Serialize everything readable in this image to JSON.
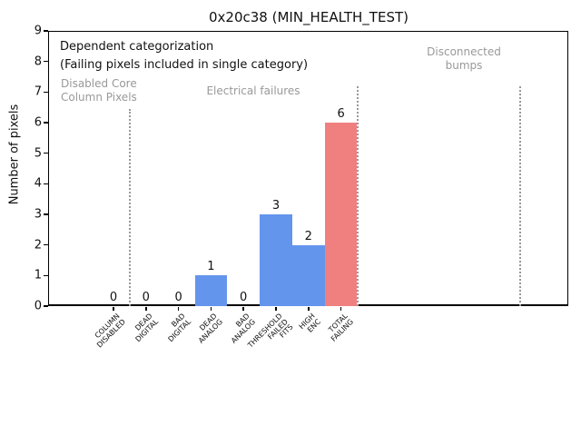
{
  "chart_data": {
    "type": "bar",
    "title": "0x20c38 (MIN_HEALTH_TEST)",
    "ylabel": "Number of pixels",
    "ylim": [
      0,
      9
    ],
    "yticks": [
      0,
      1,
      2,
      3,
      4,
      5,
      6,
      7,
      8,
      9
    ],
    "grid": false,
    "categories": [
      "COLUMN\nDISABLED",
      "DEAD\nDIGITAL",
      "BAD\nDIGITAL",
      "DEAD\nANALOG",
      "BAD\nANALOG",
      "THRESHOLD\nFAILED\nFITS",
      "HIGH\nENC",
      "TOTAL\nFAILING"
    ],
    "values": [
      0,
      0,
      0,
      1,
      0,
      3,
      2,
      6
    ],
    "bar_value_labels": [
      "0",
      "0",
      "0",
      "1",
      "0",
      "3",
      "2",
      "6"
    ],
    "bar_colors": [
      "#6495ED",
      "#6495ED",
      "#6495ED",
      "#6495ED",
      "#6495ED",
      "#6495ED",
      "#6495ED",
      "#F08080"
    ],
    "note_line1": "Dependent categorization",
    "note_line2": "(Failing pixels included in single category)",
    "regions": [
      {
        "label": "Disabled Core\nColumn Pixels",
        "from_x_unit": -2,
        "to_x_unit": 0.5
      },
      {
        "label": "Electrical failures",
        "from_x_unit": 0.5,
        "to_x_unit": 7.5
      },
      {
        "label": "Disconnected\nbumps",
        "from_x_unit": 7.5,
        "to_x_unit": 12.5
      }
    ],
    "separators_x_units": [
      0.5,
      7.5,
      12.5
    ],
    "colors": {
      "bar_default": "#6495ED",
      "bar_total": "#F08080",
      "region_label_gray": "#999999",
      "separator_gray": "#999999"
    },
    "legend": "none"
  }
}
